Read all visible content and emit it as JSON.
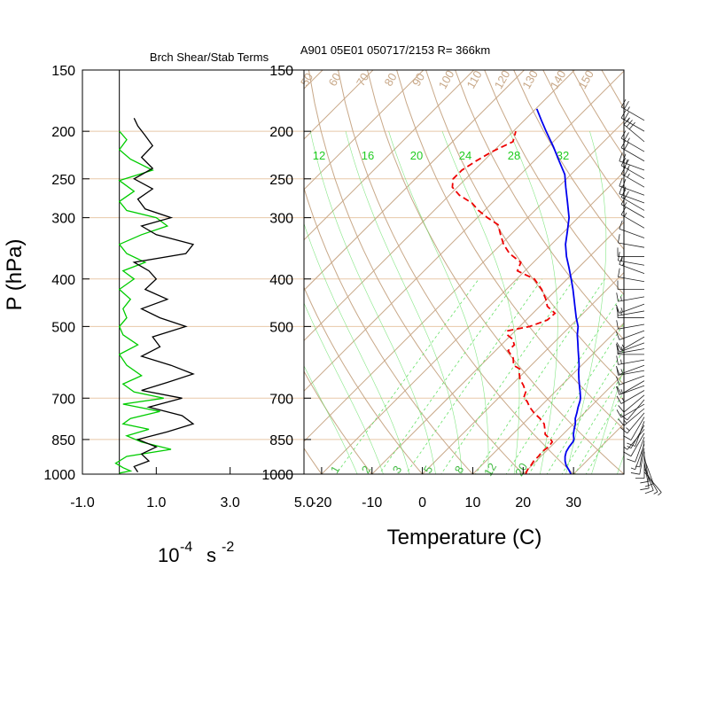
{
  "colors": {
    "isobar": "#e8c8a8",
    "isotherm": "#c8a888",
    "dry_adiabat": "#c8a888",
    "mixing_ratio": "#66e066",
    "temperature": "#0000ee",
    "dewpoint": "#ee0000",
    "shear": "#00cc00",
    "stability": "#000000"
  },
  "chart_data": [
    {
      "type": "line",
      "title": "Brch Shear/Stab Terms",
      "xlabel_base": "10",
      "xlabel_exp": "-4",
      "xlabel_unit": "s",
      "xlabel_unit_exp": "-2",
      "ylabel": "P (hPa)",
      "x_ticks": [
        "-1.0",
        "1.0",
        "3.0",
        "5.0"
      ],
      "xlim": [
        -1.0,
        5.0
      ],
      "y_ticks": [
        "150",
        "200",
        "250",
        "300",
        "400",
        "500",
        "700",
        "850",
        "1000"
      ],
      "ylim": [
        1000,
        150
      ],
      "zero_line": 0,
      "series": [
        {
          "key": "shear",
          "p": [
            995,
            985,
            970,
            950,
            920,
            890,
            860,
            835,
            810,
            790,
            770,
            745,
            720,
            700,
            680,
            655,
            630,
            600,
            570,
            545,
            520,
            500,
            480,
            460,
            440,
            420,
            400,
            385,
            370,
            355,
            340,
            325,
            312,
            300,
            290,
            278,
            265,
            252,
            240,
            228,
            218,
            208,
            200
          ],
          "x": [
            0.0,
            0.3,
            0.1,
            -0.1,
            0.2,
            1.4,
            0.6,
            0.2,
            0.8,
            0.1,
            0.3,
            1.1,
            0.1,
            1.2,
            0.4,
            0.1,
            0.6,
            0.2,
            0.0,
            0.5,
            0.1,
            0.0,
            0.2,
            0.1,
            0.3,
            0.0,
            0.4,
            0.1,
            0.7,
            0.2,
            0.0,
            0.6,
            1.3,
            1.0,
            0.2,
            0.0,
            0.4,
            0.0,
            0.9,
            0.3,
            0.0,
            0.2,
            0.0
          ]
        },
        {
          "key": "stability",
          "p": [
            990,
            965,
            940,
            910,
            880,
            850,
            820,
            790,
            760,
            730,
            700,
            675,
            650,
            625,
            600,
            575,
            550,
            525,
            500,
            480,
            460,
            440,
            420,
            400,
            385,
            370,
            355,
            340,
            325,
            312,
            300,
            288,
            275,
            262,
            250,
            238,
            226,
            214,
            204,
            195,
            188
          ],
          "x": [
            0.5,
            0.4,
            0.8,
            0.6,
            1.0,
            0.5,
            1.3,
            2.0,
            1.7,
            0.8,
            1.7,
            0.6,
            1.3,
            2.0,
            1.4,
            0.6,
            1.1,
            0.9,
            1.8,
            1.1,
            0.6,
            1.3,
            0.7,
            1.0,
            0.8,
            0.4,
            1.8,
            2.0,
            1.0,
            0.6,
            1.4,
            0.7,
            0.5,
            0.9,
            0.4,
            0.9,
            0.6,
            0.9,
            0.7,
            0.5,
            0.4
          ]
        }
      ]
    },
    {
      "type": "line",
      "title": "A901 05E01 050717/2153 R= 366km",
      "xlabel": "Temperature (C)",
      "x_ticks": [
        "-20",
        "-10",
        "0",
        "10",
        "20",
        "30"
      ],
      "y_ticks": [
        "150",
        "200",
        "250",
        "300",
        "400",
        "500",
        "700",
        "850",
        "1000"
      ],
      "ylim": [
        1000,
        150
      ],
      "xlim_at_1000hPa": [
        -23.5,
        40
      ],
      "mixing_ratio_top_labels": [
        "12",
        "16",
        "20",
        "24",
        "28",
        "32"
      ],
      "mixing_ratio_bottom_labels": [
        "1",
        "2",
        "3",
        "5",
        "8",
        "12",
        "20"
      ],
      "isotherm_labels": [
        "50",
        "60",
        "70",
        "80",
        "90",
        "100",
        "110",
        "120",
        "130",
        "140",
        "150"
      ],
      "series": [
        {
          "key": "temperature",
          "p": [
            1000,
            980,
            960,
            940,
            920,
            900,
            880,
            860,
            850,
            830,
            810,
            790,
            770,
            750,
            730,
            710,
            700,
            680,
            660,
            640,
            620,
            600,
            580,
            560,
            540,
            520,
            500,
            480,
            460,
            440,
            420,
            400,
            380,
            360,
            340,
            320,
            300,
            280,
            260,
            245,
            230,
            215,
            200,
            190,
            180
          ],
          "t": [
            29.5,
            28.2,
            26.8,
            25.7,
            24.8,
            24.1,
            23.7,
            23.5,
            23.2,
            22.1,
            21.2,
            20.4,
            19.3,
            18.5,
            17.6,
            16.8,
            16.3,
            15.0,
            13.6,
            12.2,
            10.8,
            9.5,
            8.0,
            6.4,
            4.8,
            3.1,
            1.6,
            -0.5,
            -2.5,
            -4.6,
            -6.8,
            -9.2,
            -11.8,
            -14.6,
            -17.2,
            -19.4,
            -21.8,
            -25.0,
            -28.5,
            -31.2,
            -35.0,
            -39.0,
            -43.5,
            -46.6,
            -49.8
          ]
        },
        {
          "key": "dewpoint",
          "p": [
            1000,
            980,
            960,
            940,
            920,
            900,
            880,
            860,
            850,
            830,
            810,
            790,
            770,
            750,
            730,
            710,
            700,
            680,
            660,
            640,
            620,
            610,
            600,
            580,
            560,
            545,
            530,
            520,
            510,
            500,
            485,
            470,
            455,
            440,
            420,
            400,
            385,
            370,
            355,
            340,
            325,
            310,
            300,
            290,
            280,
            270,
            260,
            250,
            240,
            230,
            220,
            210,
            200
          ],
          "t": [
            20.5,
            20.0,
            19.8,
            19.5,
            19.5,
            19.3,
            19.6,
            19.4,
            18.6,
            16.5,
            15.4,
            14.2,
            12.3,
            10.0,
            8.0,
            6.3,
            5.0,
            4.2,
            2.5,
            0.5,
            -1.0,
            -1.6,
            -3.5,
            -5.0,
            -7.5,
            -7.4,
            -9.0,
            -10.8,
            -11.5,
            -8.0,
            -5.8,
            -5.6,
            -8.5,
            -10.2,
            -13.0,
            -16.5,
            -21.5,
            -22.5,
            -26.5,
            -29.5,
            -32.0,
            -34.5,
            -38.0,
            -41.2,
            -44.0,
            -48.0,
            -51.0,
            -52.5,
            -52.5,
            -51.5,
            -50.2,
            -48.0,
            -49.5
          ]
        }
      ],
      "wind_barbs": {
        "p": [
          990,
          975,
          960,
          945,
          930,
          915,
          900,
          885,
          870,
          855,
          840,
          825,
          810,
          795,
          780,
          765,
          750,
          735,
          720,
          705,
          690,
          675,
          660,
          645,
          630,
          615,
          600,
          585,
          570,
          555,
          540,
          525,
          510,
          495,
          480,
          465,
          450,
          435,
          420,
          405,
          390,
          375,
          360,
          345,
          330,
          315,
          300,
          290,
          280,
          270,
          260,
          250,
          240,
          230,
          220,
          210,
          200,
          190
        ],
        "speed_kt": [
          5,
          5,
          10,
          10,
          10,
          10,
          10,
          10,
          5,
          5,
          10,
          10,
          5,
          5,
          10,
          10,
          15,
          15,
          10,
          10,
          10,
          15,
          15,
          10,
          10,
          10,
          15,
          15,
          10,
          10,
          15,
          15,
          10,
          10,
          10,
          15,
          15,
          15,
          10,
          10,
          15,
          15,
          10,
          10,
          10,
          15,
          15,
          20,
          20,
          20,
          25,
          25,
          25,
          20,
          25,
          30,
          25,
          25
        ],
        "dir_deg": [
          140,
          150,
          160,
          170,
          160,
          170,
          180,
          190,
          200,
          190,
          200,
          210,
          220,
          210,
          200,
          210,
          220,
          230,
          240,
          220,
          230,
          240,
          250,
          240,
          250,
          260,
          250,
          260,
          270,
          260,
          250,
          240,
          250,
          260,
          270,
          260,
          250,
          260,
          270,
          280,
          290,
          280,
          270,
          280,
          290,
          300,
          300,
          300,
          290,
          290,
          300,
          300,
          290,
          300,
          300,
          310,
          300,
          300
        ]
      }
    }
  ]
}
